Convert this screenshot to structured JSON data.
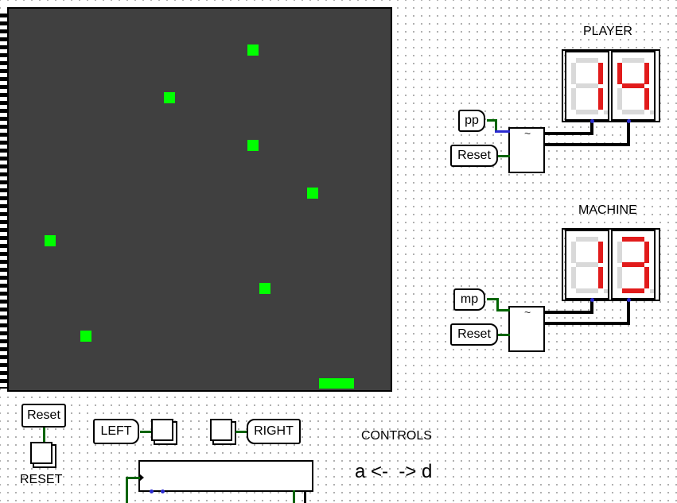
{
  "board": {
    "balls": [
      {
        "col": 20,
        "row": 3
      },
      {
        "col": 13,
        "row": 7
      },
      {
        "col": 20,
        "row": 11
      },
      {
        "col": 25,
        "row": 15
      },
      {
        "col": 3,
        "row": 19
      },
      {
        "col": 21,
        "row": 23
      },
      {
        "col": 6,
        "row": 27
      }
    ],
    "paddle": {
      "col": 26,
      "row": 31,
      "width_cells": 3
    }
  },
  "scores": {
    "player_title": "PLAYER",
    "player_digits": [
      1,
      4
    ],
    "machine_title": "MACHINE",
    "machine_digits": [
      1,
      3
    ]
  },
  "inputs": {
    "pp": "pp",
    "mp": "mp",
    "reset": "Reset"
  },
  "controls": {
    "reset_tag": "Reset",
    "reset_label": "RESET",
    "left_tag": "LEFT",
    "right_tag": "RIGHT",
    "title": "CONTROLS",
    "hint": "a <-  -> d"
  },
  "colors": {
    "screen_bg": "#404040",
    "pixel_on": "#00ff00",
    "segment_on": "#e11b1b",
    "segment_off": "#d9d9d9",
    "wire": "#006400"
  }
}
